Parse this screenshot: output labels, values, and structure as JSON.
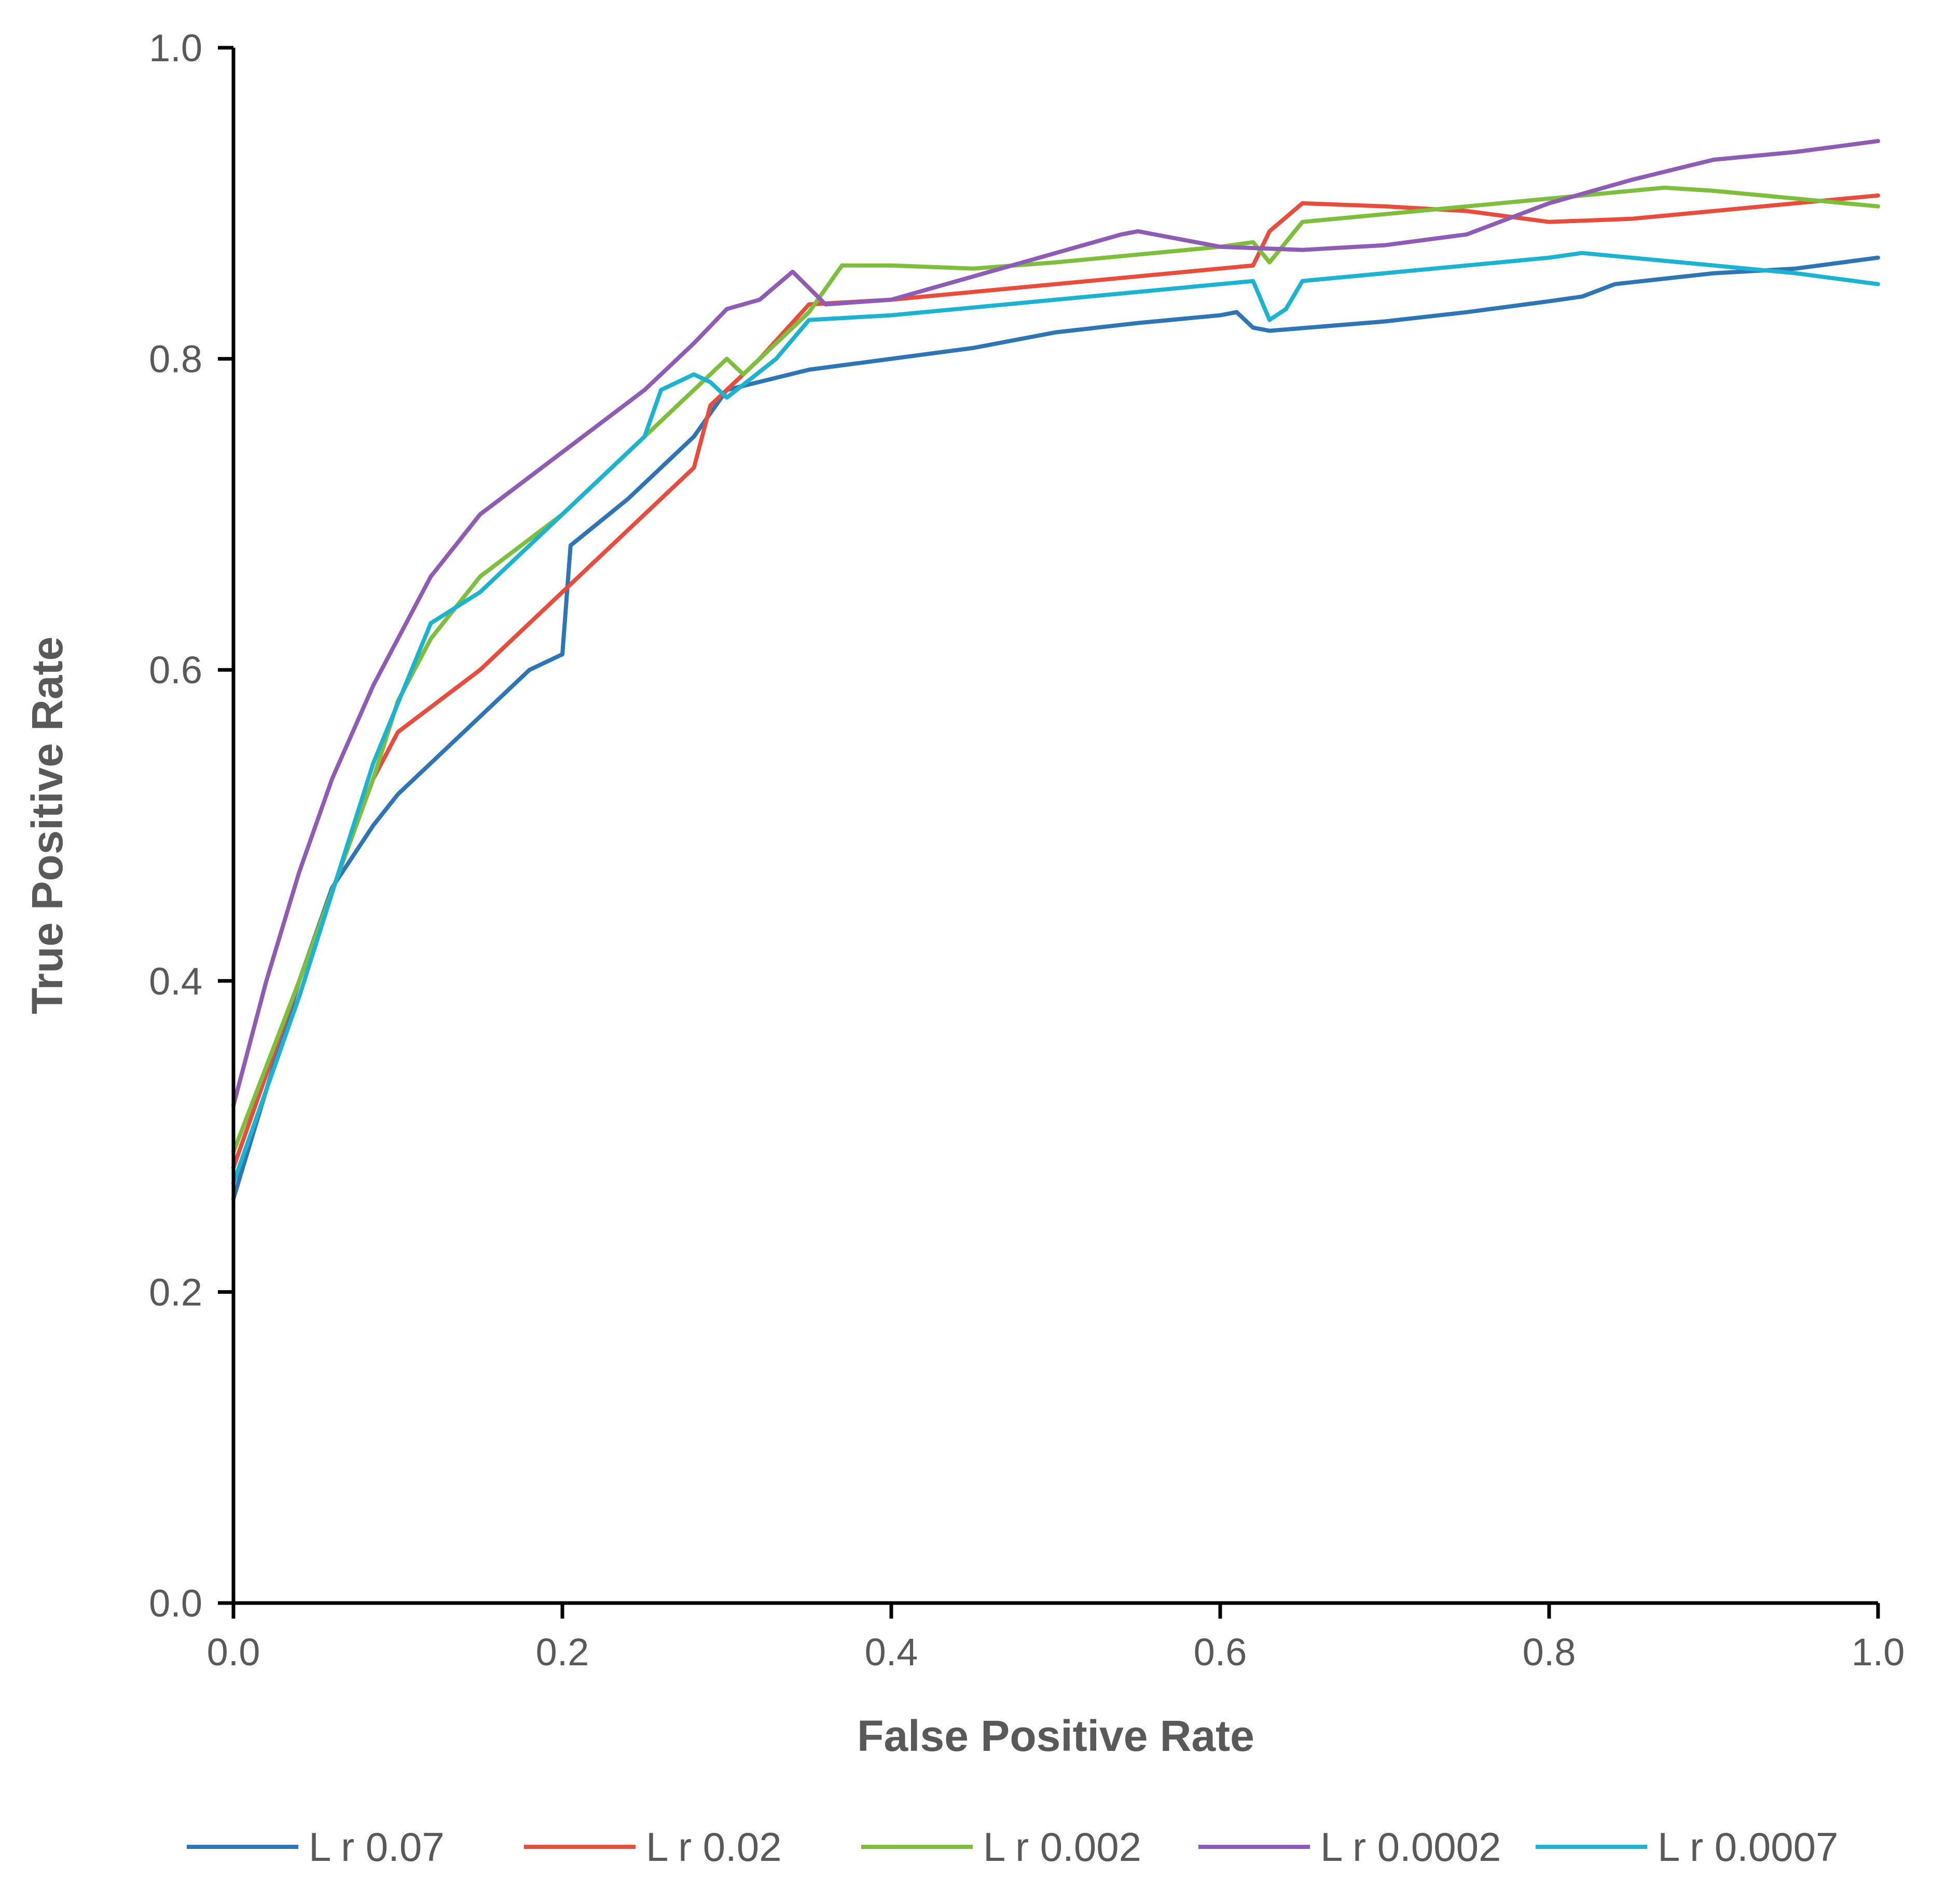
{
  "chart_data": {
    "type": "line",
    "title": "",
    "xlabel": "False Positive Rate",
    "ylabel": "True Positive Rate",
    "xlim": [
      0,
      1
    ],
    "ylim": [
      0,
      1
    ],
    "xticks": [
      "0.0",
      "0.2",
      "0.4",
      "0.6",
      "0.8",
      "1.0"
    ],
    "yticks": [
      "0.0",
      "0.2",
      "0.4",
      "0.6",
      "0.8",
      "1.0"
    ],
    "grid": false,
    "legend_position": "bottom",
    "series": [
      {
        "name": "L r 0.07",
        "color": "#2E75B6",
        "points": [
          [
            0,
            0.26
          ],
          [
            0.02,
            0.33
          ],
          [
            0.04,
            0.4
          ],
          [
            0.06,
            0.46
          ],
          [
            0.085,
            0.5
          ],
          [
            0.1,
            0.52
          ],
          [
            0.14,
            0.56
          ],
          [
            0.18,
            0.6
          ],
          [
            0.2,
            0.61
          ],
          [
            0.205,
            0.68
          ],
          [
            0.24,
            0.71
          ],
          [
            0.28,
            0.75
          ],
          [
            0.3,
            0.78
          ],
          [
            0.35,
            0.793
          ],
          [
            0.4,
            0.8
          ],
          [
            0.45,
            0.807
          ],
          [
            0.5,
            0.817
          ],
          [
            0.55,
            0.823
          ],
          [
            0.6,
            0.828
          ],
          [
            0.61,
            0.83
          ],
          [
            0.62,
            0.82
          ],
          [
            0.63,
            0.818
          ],
          [
            0.7,
            0.824
          ],
          [
            0.75,
            0.83
          ],
          [
            0.8,
            0.837
          ],
          [
            0.82,
            0.84
          ],
          [
            0.84,
            0.848
          ],
          [
            0.9,
            0.855
          ],
          [
            0.95,
            0.858
          ],
          [
            1.0,
            0.865
          ]
        ]
      },
      {
        "name": "L r 0.02",
        "color": "#E74C3C",
        "points": [
          [
            0,
            0.28
          ],
          [
            0.04,
            0.4
          ],
          [
            0.085,
            0.53
          ],
          [
            0.1,
            0.56
          ],
          [
            0.15,
            0.6
          ],
          [
            0.2,
            0.65
          ],
          [
            0.25,
            0.7
          ],
          [
            0.28,
            0.73
          ],
          [
            0.29,
            0.77
          ],
          [
            0.32,
            0.8
          ],
          [
            0.35,
            0.835
          ],
          [
            0.4,
            0.838
          ],
          [
            0.45,
            0.843
          ],
          [
            0.5,
            0.848
          ],
          [
            0.55,
            0.853
          ],
          [
            0.6,
            0.858
          ],
          [
            0.62,
            0.86
          ],
          [
            0.63,
            0.882
          ],
          [
            0.65,
            0.9
          ],
          [
            0.7,
            0.898
          ],
          [
            0.75,
            0.895
          ],
          [
            0.8,
            0.888
          ],
          [
            0.85,
            0.89
          ],
          [
            0.9,
            0.895
          ],
          [
            0.95,
            0.9
          ],
          [
            1.0,
            0.905
          ]
        ]
      },
      {
        "name": "L r 0.002",
        "color": "#7DBE3C",
        "points": [
          [
            0,
            0.29
          ],
          [
            0.04,
            0.4
          ],
          [
            0.085,
            0.53
          ],
          [
            0.1,
            0.58
          ],
          [
            0.12,
            0.62
          ],
          [
            0.15,
            0.66
          ],
          [
            0.2,
            0.7
          ],
          [
            0.25,
            0.75
          ],
          [
            0.28,
            0.78
          ],
          [
            0.3,
            0.8
          ],
          [
            0.31,
            0.79
          ],
          [
            0.35,
            0.83
          ],
          [
            0.37,
            0.86
          ],
          [
            0.4,
            0.86
          ],
          [
            0.45,
            0.858
          ],
          [
            0.5,
            0.862
          ],
          [
            0.55,
            0.867
          ],
          [
            0.6,
            0.872
          ],
          [
            0.62,
            0.875
          ],
          [
            0.63,
            0.862
          ],
          [
            0.65,
            0.888
          ],
          [
            0.7,
            0.893
          ],
          [
            0.75,
            0.898
          ],
          [
            0.8,
            0.903
          ],
          [
            0.85,
            0.908
          ],
          [
            0.87,
            0.91
          ],
          [
            0.9,
            0.908
          ],
          [
            0.95,
            0.903
          ],
          [
            1.0,
            0.898
          ]
        ]
      },
      {
        "name": "L r 0.0002",
        "color": "#8E5BB5",
        "points": [
          [
            0,
            0.32
          ],
          [
            0.02,
            0.4
          ],
          [
            0.04,
            0.47
          ],
          [
            0.06,
            0.53
          ],
          [
            0.085,
            0.59
          ],
          [
            0.1,
            0.62
          ],
          [
            0.12,
            0.66
          ],
          [
            0.15,
            0.7
          ],
          [
            0.2,
            0.74
          ],
          [
            0.25,
            0.78
          ],
          [
            0.28,
            0.81
          ],
          [
            0.3,
            0.832
          ],
          [
            0.32,
            0.838
          ],
          [
            0.34,
            0.856
          ],
          [
            0.36,
            0.835
          ],
          [
            0.4,
            0.838
          ],
          [
            0.45,
            0.853
          ],
          [
            0.5,
            0.868
          ],
          [
            0.54,
            0.88
          ],
          [
            0.55,
            0.882
          ],
          [
            0.6,
            0.872
          ],
          [
            0.65,
            0.87
          ],
          [
            0.7,
            0.873
          ],
          [
            0.75,
            0.88
          ],
          [
            0.8,
            0.9
          ],
          [
            0.85,
            0.915
          ],
          [
            0.9,
            0.928
          ],
          [
            0.95,
            0.933
          ],
          [
            1.0,
            0.94
          ]
        ]
      },
      {
        "name": "L r 0.0007",
        "color": "#1CB3D1",
        "points": [
          [
            0,
            0.27
          ],
          [
            0.04,
            0.39
          ],
          [
            0.085,
            0.54
          ],
          [
            0.12,
            0.63
          ],
          [
            0.15,
            0.65
          ],
          [
            0.2,
            0.7
          ],
          [
            0.25,
            0.75
          ],
          [
            0.26,
            0.78
          ],
          [
            0.28,
            0.79
          ],
          [
            0.29,
            0.785
          ],
          [
            0.3,
            0.775
          ],
          [
            0.33,
            0.8
          ],
          [
            0.35,
            0.825
          ],
          [
            0.4,
            0.828
          ],
          [
            0.45,
            0.833
          ],
          [
            0.5,
            0.838
          ],
          [
            0.55,
            0.843
          ],
          [
            0.6,
            0.848
          ],
          [
            0.62,
            0.85
          ],
          [
            0.63,
            0.825
          ],
          [
            0.64,
            0.832
          ],
          [
            0.65,
            0.85
          ],
          [
            0.7,
            0.855
          ],
          [
            0.75,
            0.86
          ],
          [
            0.8,
            0.865
          ],
          [
            0.82,
            0.868
          ],
          [
            0.85,
            0.865
          ],
          [
            0.9,
            0.86
          ],
          [
            0.95,
            0.855
          ],
          [
            1.0,
            0.848
          ]
        ]
      }
    ]
  }
}
